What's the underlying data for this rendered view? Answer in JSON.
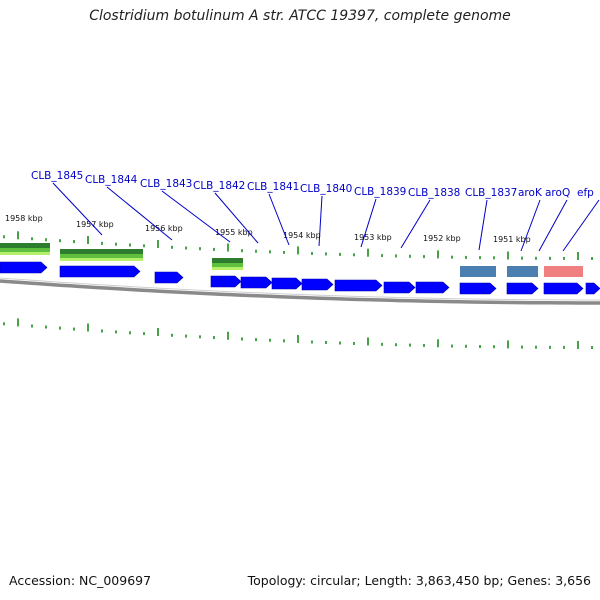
{
  "title": "Clostridium botulinum A str. ATCC 19397, complete genome",
  "footer": {
    "accession": "Accession: NC_009697",
    "stats": "Topology: circular; Length: 3,863,450 bp; Genes: 3,656"
  },
  "colors": {
    "cds": "#0000ff",
    "gene_label": "#0000c8",
    "backbone": "#8a8a8a",
    "tick": "#1a8a1a",
    "feature_green": "#2e8b2e",
    "feature_steel": "#4a7fb0",
    "feature_pink": "#f08080"
  },
  "scale": {
    "unit": "kbp",
    "labels": [
      "1958 kbp",
      "1957 kbp",
      "1956 kbp",
      "1955 kbp",
      "1954 kbp",
      "1953 kbp",
      "1952 kbp",
      "1951 kbp"
    ]
  },
  "gene_labels": [
    "CLB_1845",
    "CLB_1844",
    "CLB_1843",
    "CLB_1842",
    "CLB_1841",
    "CLB_1840",
    "CLB_1839",
    "CLB_1838",
    "CLB_1837",
    "aroK",
    "aroQ",
    "efp"
  ]
}
